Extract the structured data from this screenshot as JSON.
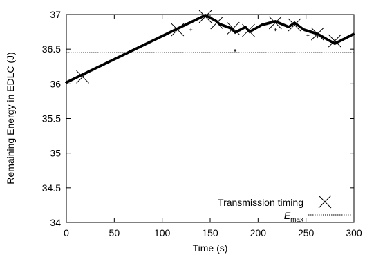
{
  "chart_data": {
    "type": "scatter",
    "xlabel": "Time (s)",
    "ylabel": "Remaining Energy in EDLC (J)",
    "xlim": [
      0,
      300
    ],
    "ylim": [
      34,
      37
    ],
    "xticks": [
      0,
      50,
      100,
      150,
      200,
      250,
      300
    ],
    "yticks": [
      34,
      34.5,
      35,
      35.5,
      36,
      36.5,
      37
    ],
    "xtick_labels": [
      "0",
      "50",
      "100",
      "150",
      "200",
      "250",
      "300"
    ],
    "ytick_labels": [
      "34",
      "34.5",
      "35",
      "35.5",
      "36",
      "36.5",
      "37"
    ],
    "grid": false,
    "legend": "bottom-right",
    "series": [
      {
        "name": "Transmission timing",
        "marker": "x",
        "x": [
          17,
          116,
          145,
          157,
          174,
          190,
          218,
          238,
          262,
          280
        ],
        "y": [
          36.1,
          36.78,
          36.97,
          36.88,
          36.8,
          36.77,
          36.88,
          36.85,
          36.72,
          36.62
        ]
      },
      {
        "name": "E_max",
        "style": "dotted",
        "x": [
          0,
          300
        ],
        "y": [
          36.45,
          36.45
        ]
      }
    ],
    "energy_trace": {
      "style": "dense-points",
      "x": [
        0,
        145,
        157,
        160,
        172,
        176,
        187,
        191,
        204,
        218,
        232,
        238,
        248,
        262,
        280,
        300
      ],
      "y": [
        36.02,
        36.99,
        36.9,
        36.86,
        36.8,
        36.74,
        36.82,
        36.75,
        36.85,
        36.9,
        36.82,
        36.88,
        36.78,
        36.72,
        36.58,
        36.72
      ]
    },
    "isolated_points": {
      "x": [
        130,
        176,
        218,
        252,
        262
      ],
      "y": [
        36.78,
        36.48,
        36.78,
        36.7,
        36.68
      ]
    }
  },
  "legend": {
    "transmission_label": "Transmission timing",
    "emax_label_base": "E",
    "emax_label_sub": "max"
  }
}
